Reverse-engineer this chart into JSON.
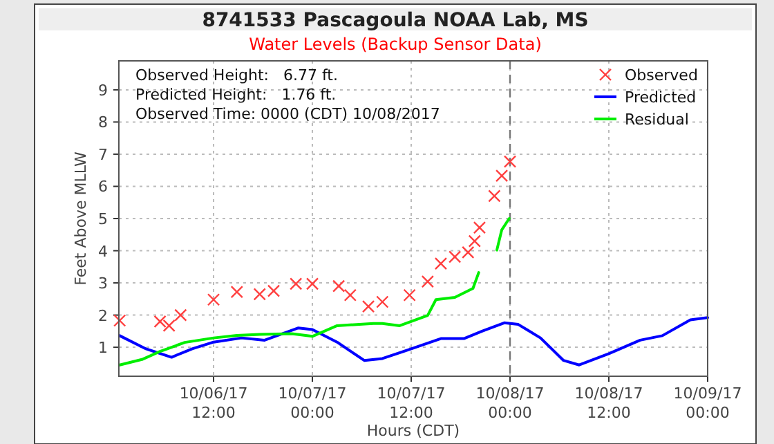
{
  "chart_data": {
    "type": "line",
    "title": "8741533 Pascagoula NOAA Lab, MS",
    "subtitle": "Water Levels (Backup Sensor Data)",
    "xlabel": "Hours (CDT)",
    "ylabel": "Feet Above MLLW",
    "annotations": [
      "Observed Height:   6.77 ft.",
      "Predicted Height:   1.76 ft.",
      "Observed Time: 0000 (CDT) 10/08/2017"
    ],
    "xlim": [
      "2017-10-06T00:30",
      "2017-10-09T00:00"
    ],
    "xticks": [
      {
        "value": "2017-10-06T12:00",
        "label": "10/06/17 12:00"
      },
      {
        "value": "2017-10-07T00:00",
        "label": "10/07/17 00:00"
      },
      {
        "value": "2017-10-07T12:00",
        "label": "10/07/17 12:00"
      },
      {
        "value": "2017-10-08T00:00",
        "label": "10/08/17 00:00"
      },
      {
        "value": "2017-10-08T12:00",
        "label": "10/08/17 12:00"
      },
      {
        "value": "2017-10-09T00:00",
        "label": "10/09/17 00:00"
      }
    ],
    "ylim": [
      0.1,
      9.9
    ],
    "yticks": [
      1,
      2,
      3,
      4,
      5,
      6,
      7,
      8,
      9
    ],
    "grid": true,
    "legend": "top right",
    "ref_lines": [
      {
        "axis": "x",
        "value": "2017-10-08T00:00",
        "color": "#777777",
        "line_style": "dashed"
      }
    ],
    "series": [
      {
        "name": "Observed",
        "type": "scatter",
        "marker": "cross",
        "color": "#ff4040",
        "x": [
          "2017-10-06T00:36",
          "2017-10-06T05:30",
          "2017-10-06T06:36",
          "2017-10-06T08:00",
          "2017-10-06T12:00",
          "2017-10-06T14:50",
          "2017-10-06T17:36",
          "2017-10-06T19:18",
          "2017-10-06T22:00",
          "2017-10-07T00:00",
          "2017-10-07T03:12",
          "2017-10-07T04:36",
          "2017-10-07T06:48",
          "2017-10-07T08:30",
          "2017-10-07T11:48",
          "2017-10-07T14:00",
          "2017-10-07T15:36",
          "2017-10-07T17:18",
          "2017-10-07T18:54",
          "2017-10-07T19:42",
          "2017-10-07T20:18",
          "2017-10-07T22:06",
          "2017-10-07T23:00",
          "2017-10-08T00:00"
        ],
        "values": [
          1.83,
          1.8,
          1.67,
          2.0,
          2.48,
          2.72,
          2.65,
          2.75,
          2.97,
          2.97,
          2.9,
          2.62,
          2.27,
          2.41,
          2.62,
          3.04,
          3.6,
          3.81,
          3.95,
          4.3,
          4.72,
          5.7,
          6.33,
          6.77
        ]
      },
      {
        "name": "Predicted",
        "color": "#0000ff",
        "x": [
          "2017-10-06T00:36",
          "2017-10-06T03:48",
          "2017-10-06T06:54",
          "2017-10-06T09:24",
          "2017-10-06T12:00",
          "2017-10-06T15:24",
          "2017-10-06T18:12",
          "2017-10-06T22:18",
          "2017-10-07T00:00",
          "2017-10-07T03:00",
          "2017-10-07T06:18",
          "2017-10-07T08:30",
          "2017-10-07T12:00",
          "2017-10-07T15:36",
          "2017-10-07T18:24",
          "2017-10-07T20:36",
          "2017-10-07T23:18",
          "2017-10-08T01:00",
          "2017-10-08T03:42",
          "2017-10-08T06:30",
          "2017-10-08T08:24",
          "2017-10-08T12:00",
          "2017-10-08T15:48",
          "2017-10-08T18:30",
          "2017-10-08T21:54",
          "2017-10-09T00:00"
        ],
        "values": [
          1.36,
          0.95,
          0.69,
          0.95,
          1.16,
          1.29,
          1.22,
          1.6,
          1.55,
          1.16,
          0.59,
          0.65,
          0.95,
          1.27,
          1.27,
          1.5,
          1.76,
          1.71,
          1.29,
          0.59,
          0.45,
          0.8,
          1.22,
          1.36,
          1.85,
          1.92
        ]
      },
      {
        "name": "Residual",
        "color": "#00ee00",
        "x": [
          "2017-10-06T00:36",
          "2017-10-06T03:18",
          "2017-10-06T05:30",
          "2017-10-06T08:30",
          "2017-10-06T12:00",
          "2017-10-06T14:50",
          "2017-10-06T17:36",
          "2017-10-06T21:30",
          "2017-10-07T00:00",
          "2017-10-07T03:00",
          "2017-10-07T07:24",
          "2017-10-07T08:30",
          "2017-10-07T10:36",
          "2017-10-07T14:00",
          "2017-10-07T15:00",
          "2017-10-07T17:18",
          "2017-10-07T19:30",
          "2017-10-07T20:12",
          "2017-10-07T21:00",
          "2017-10-07T22:24",
          "2017-10-07T23:00",
          "2017-10-07T23:54"
        ],
        "values": [
          0.45,
          0.62,
          0.87,
          1.15,
          1.29,
          1.37,
          1.4,
          1.42,
          1.34,
          1.67,
          1.74,
          1.74,
          1.67,
          1.99,
          2.48,
          2.55,
          2.83,
          3.32,
          null,
          4.02,
          4.65,
          5.0
        ]
      }
    ]
  }
}
